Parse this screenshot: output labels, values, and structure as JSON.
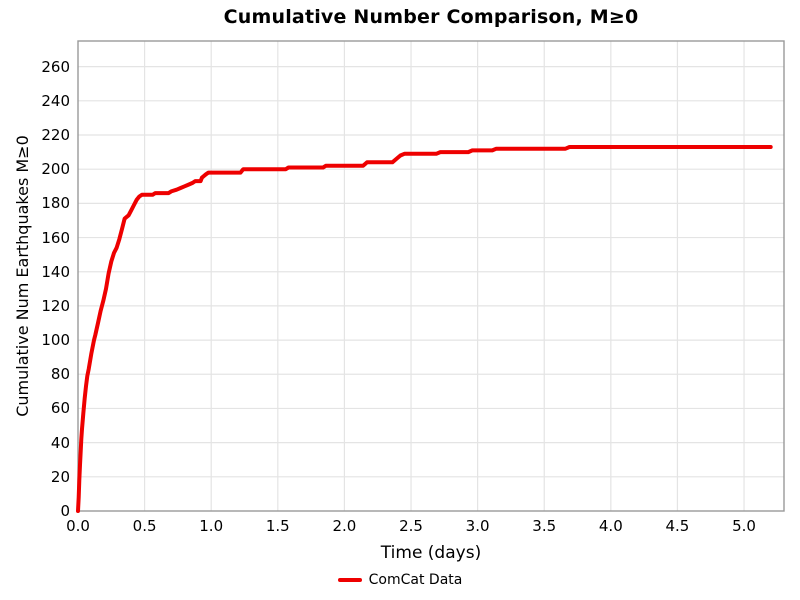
{
  "chart_data": {
    "type": "line",
    "title": "Cumulative Number Comparison, M≥0",
    "xlabel": "Time (days)",
    "ylabel": "Cumulative Num Earthquakes M≥0",
    "xlim": [
      0,
      5.3
    ],
    "ylim": [
      0,
      275
    ],
    "grid": true,
    "xticks": [
      {
        "value": 0.0,
        "label": "0.0"
      },
      {
        "value": 0.5,
        "label": "0.5"
      },
      {
        "value": 1.0,
        "label": "1.0"
      },
      {
        "value": 1.5,
        "label": "1.5"
      },
      {
        "value": 2.0,
        "label": "2.0"
      },
      {
        "value": 2.5,
        "label": "2.5"
      },
      {
        "value": 3.0,
        "label": "3.0"
      },
      {
        "value": 3.5,
        "label": "3.5"
      },
      {
        "value": 4.0,
        "label": "4.0"
      },
      {
        "value": 4.5,
        "label": "4.5"
      },
      {
        "value": 5.0,
        "label": "5.0"
      }
    ],
    "yticks": [
      {
        "value": 0,
        "label": "0"
      },
      {
        "value": 20,
        "label": "20"
      },
      {
        "value": 40,
        "label": "40"
      },
      {
        "value": 60,
        "label": "60"
      },
      {
        "value": 80,
        "label": "80"
      },
      {
        "value": 100,
        "label": "100"
      },
      {
        "value": 120,
        "label": "120"
      },
      {
        "value": 140,
        "label": "140"
      },
      {
        "value": 160,
        "label": "160"
      },
      {
        "value": 180,
        "label": "180"
      },
      {
        "value": 200,
        "label": "200"
      },
      {
        "value": 220,
        "label": "220"
      },
      {
        "value": 240,
        "label": "240"
      },
      {
        "value": 260,
        "label": "260"
      }
    ],
    "legend": {
      "position": "bottom-center",
      "entries": [
        {
          "label": "ComCat Data",
          "color": "#ee0000"
        }
      ]
    },
    "series": [
      {
        "name": "ComCat Data",
        "color": "#ee0000",
        "line_width": 4,
        "points": [
          [
            0.0,
            0
          ],
          [
            0.005,
            8
          ],
          [
            0.01,
            18
          ],
          [
            0.015,
            27
          ],
          [
            0.02,
            35
          ],
          [
            0.025,
            42
          ],
          [
            0.03,
            48
          ],
          [
            0.04,
            57
          ],
          [
            0.05,
            66
          ],
          [
            0.06,
            73
          ],
          [
            0.07,
            79
          ],
          [
            0.08,
            83
          ],
          [
            0.1,
            92
          ],
          [
            0.12,
            100
          ],
          [
            0.13,
            103
          ],
          [
            0.15,
            110
          ],
          [
            0.17,
            117
          ],
          [
            0.19,
            123
          ],
          [
            0.21,
            130
          ],
          [
            0.23,
            139
          ],
          [
            0.25,
            146
          ],
          [
            0.27,
            151
          ],
          [
            0.29,
            154
          ],
          [
            0.31,
            159
          ],
          [
            0.33,
            165
          ],
          [
            0.35,
            171
          ],
          [
            0.38,
            173
          ],
          [
            0.4,
            176
          ],
          [
            0.42,
            179
          ],
          [
            0.44,
            182
          ],
          [
            0.46,
            184
          ],
          [
            0.48,
            185
          ],
          [
            0.56,
            185
          ],
          [
            0.58,
            186
          ],
          [
            0.68,
            186
          ],
          [
            0.7,
            187
          ],
          [
            0.74,
            188
          ],
          [
            0.77,
            189
          ],
          [
            0.8,
            190
          ],
          [
            0.83,
            191
          ],
          [
            0.86,
            192
          ],
          [
            0.88,
            193
          ],
          [
            0.92,
            193
          ],
          [
            0.93,
            195
          ],
          [
            0.945,
            196
          ],
          [
            0.96,
            197
          ],
          [
            0.98,
            198
          ],
          [
            1.22,
            198
          ],
          [
            1.24,
            200
          ],
          [
            1.56,
            200
          ],
          [
            1.58,
            201
          ],
          [
            1.84,
            201
          ],
          [
            1.86,
            202
          ],
          [
            2.14,
            202
          ],
          [
            2.17,
            204
          ],
          [
            2.36,
            204
          ],
          [
            2.39,
            206
          ],
          [
            2.42,
            208
          ],
          [
            2.45,
            209
          ],
          [
            2.69,
            209
          ],
          [
            2.72,
            210
          ],
          [
            2.93,
            210
          ],
          [
            2.96,
            211
          ],
          [
            3.11,
            211
          ],
          [
            3.14,
            212
          ],
          [
            3.66,
            212
          ],
          [
            3.69,
            213
          ],
          [
            5.2,
            213
          ]
        ]
      }
    ],
    "colors": {
      "line": "#ee0000",
      "grid": "#e4e4e4",
      "frame": "#999999",
      "text": "#000000",
      "background": "#ffffff"
    }
  }
}
